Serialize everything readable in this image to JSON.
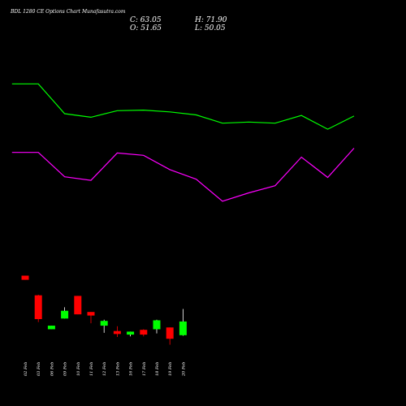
{
  "chart_data": {
    "type": "candlestick",
    "title": "BDL 1280 CE Options Chart Munafasutra.com",
    "ohlc_readout": {
      "close": "C: 63.05",
      "high": "H: 71.90",
      "open": "O: 51.65",
      "low": "L: 50.05"
    },
    "x_labels": [
      "02 Feb",
      "03 Feb",
      "06 Feb",
      "09 Feb",
      "10 Feb",
      "11 Feb",
      "12 Feb",
      "13 Feb",
      "16 Feb",
      "17 Feb",
      "18 Feb",
      "19 Feb",
      "20 Feb"
    ],
    "candles": [
      {
        "open": 178.0,
        "close": 171.0,
        "high": 178.0,
        "low": 171.0,
        "color": "red"
      },
      {
        "open": 145.0,
        "close": 105.0,
        "high": 146.0,
        "low": 100.0,
        "color": "red"
      },
      {
        "open": 88.0,
        "close": 94.0,
        "high": 94.0,
        "low": 88.0,
        "color": "green"
      },
      {
        "open": 106.0,
        "close": 119.0,
        "high": 125.0,
        "low": 106.0,
        "color": "green"
      },
      {
        "open": 144.0,
        "close": 113.0,
        "high": 144.0,
        "low": 113.0,
        "color": "red"
      },
      {
        "open": 117.0,
        "close": 111.0,
        "high": 117.0,
        "low": 98.0,
        "color": "red"
      },
      {
        "open": 94.0,
        "close": 102.0,
        "high": 104.0,
        "low": 82.0,
        "color": "green"
      },
      {
        "open": 85.0,
        "close": 80.0,
        "high": 93.0,
        "low": 75.0,
        "color": "red"
      },
      {
        "open": 79.0,
        "close": 84.0,
        "high": 84.0,
        "low": 76.0,
        "color": "green"
      },
      {
        "open": 87.0,
        "close": 79.0,
        "high": 88.0,
        "low": 76.0,
        "color": "red"
      },
      {
        "open": 88.0,
        "close": 103.0,
        "high": 104.0,
        "low": 81.0,
        "color": "green"
      },
      {
        "open": 91.0,
        "close": 72.0,
        "high": 91.0,
        "low": 62.0,
        "color": "red"
      },
      {
        "open": 78.0,
        "close": 101.0,
        "high": 122.0,
        "low": 77.0,
        "color": "green"
      }
    ],
    "series": [
      {
        "color": "#00ff00",
        "points": [
          [
            -1,
            500
          ],
          [
            1,
            500
          ],
          [
            3,
            450
          ],
          [
            5,
            444
          ],
          [
            7,
            455
          ],
          [
            9,
            456
          ],
          [
            11,
            453
          ],
          [
            13,
            448
          ],
          [
            15,
            434
          ],
          [
            17,
            436
          ],
          [
            19,
            434
          ],
          [
            21,
            447
          ],
          [
            23,
            424
          ],
          [
            25,
            446
          ]
        ]
      },
      {
        "color": "#ff00ff",
        "points": [
          [
            -1,
            385
          ],
          [
            1,
            385
          ],
          [
            3,
            344
          ],
          [
            5,
            338
          ],
          [
            7,
            384
          ],
          [
            9,
            380
          ],
          [
            11,
            356
          ],
          [
            13,
            340
          ],
          [
            15,
            303
          ],
          [
            17,
            317
          ],
          [
            19,
            329
          ],
          [
            21,
            377
          ],
          [
            23,
            343
          ],
          [
            25,
            392
          ]
        ]
      }
    ],
    "ylim": [
      0,
      600
    ],
    "grid": false,
    "up_color": "#00ff00",
    "down_color": "#ff0000",
    "background": "#000000"
  }
}
